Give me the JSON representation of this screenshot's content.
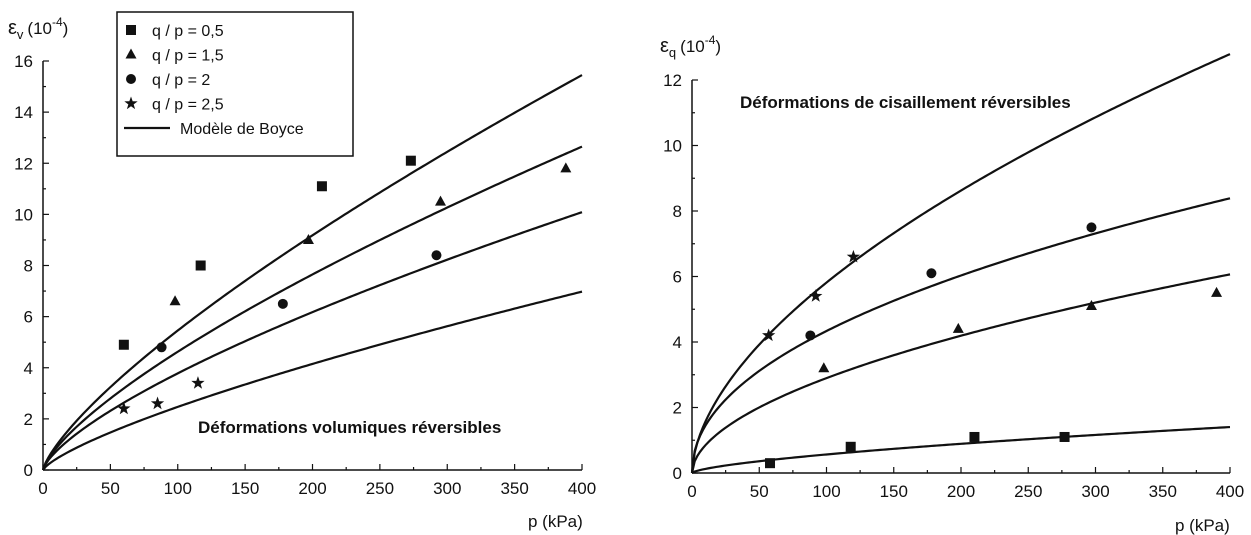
{
  "chart_data": [
    {
      "type": "scatter",
      "title": "Déformations volumiques réversibles",
      "ylabel": "εv (10-4)",
      "ylabel_symbol": "ε",
      "ylabel_sub": "v",
      "ylabel_unit": "(10",
      "ylabel_exp": "-4",
      "ylabel_close": ")",
      "xlabel": "p (kPa)",
      "xlim": [
        0,
        400
      ],
      "ylim": [
        0,
        16
      ],
      "xticks": [
        0,
        50,
        100,
        150,
        200,
        250,
        300,
        350,
        400
      ],
      "yticks": [
        0,
        2,
        4,
        6,
        8,
        10,
        12,
        14,
        16
      ],
      "grid": false,
      "legend": {
        "placement": "top-left",
        "entries": [
          {
            "label": "q / p = 0,5",
            "marker": "square"
          },
          {
            "label": "q / p = 1,5",
            "marker": "triangle"
          },
          {
            "label": "q / p = 2",
            "marker": "circle"
          },
          {
            "label": "q / p = 2,5",
            "marker": "star"
          },
          {
            "label": "Modèle de Boyce",
            "marker": "line"
          }
        ]
      },
      "series": [
        {
          "marker": "square",
          "points": [
            [
              60,
              4.9
            ],
            [
              117,
              8.0
            ],
            [
              207,
              11.1
            ],
            [
              273,
              12.1
            ]
          ]
        },
        {
          "marker": "triangle",
          "points": [
            [
              98,
              6.6
            ],
            [
              197,
              9.0
            ],
            [
              295,
              10.5
            ],
            [
              388,
              11.8
            ]
          ]
        },
        {
          "marker": "circle",
          "points": [
            [
              88,
              4.8
            ],
            [
              178,
              6.5
            ],
            [
              292,
              8.4
            ]
          ]
        },
        {
          "marker": "star",
          "points": [
            [
              60,
              2.4
            ],
            [
              85,
              2.6
            ],
            [
              115,
              3.4
            ]
          ]
        }
      ],
      "curves": [
        {
          "name": "q / p = 0,5",
          "a": 0.1718,
          "b": 0.7509
        },
        {
          "name": "q / p = 1,5",
          "a": 0.1637,
          "b": 0.7256
        },
        {
          "name": "q / p = 2",
          "a": 0.1452,
          "b": 0.7078
        },
        {
          "name": "q / p = 2,5",
          "a": 0.0782,
          "b": 0.7496
        }
      ]
    },
    {
      "type": "scatter",
      "title": "Déformations de cisaillement réversibles",
      "ylabel": "εq (10-4)",
      "ylabel_symbol": "ε",
      "ylabel_sub": "q",
      "ylabel_unit": "(10",
      "ylabel_exp": "-4",
      "ylabel_close": ")",
      "xlabel": "p (kPa)",
      "xlim": [
        0,
        400
      ],
      "ylim": [
        0,
        12
      ],
      "xticks": [
        0,
        50,
        100,
        150,
        200,
        250,
        300,
        350,
        400
      ],
      "yticks": [
        0,
        2,
        4,
        6,
        8,
        10,
        12
      ],
      "grid": false,
      "series": [
        {
          "marker": "star",
          "points": [
            [
              57,
              4.2
            ],
            [
              92,
              5.4
            ],
            [
              120,
              6.6
            ]
          ]
        },
        {
          "marker": "circle",
          "points": [
            [
              88,
              4.2
            ],
            [
              178,
              6.1
            ],
            [
              297,
              7.5
            ]
          ]
        },
        {
          "marker": "triangle",
          "points": [
            [
              98,
              3.2
            ],
            [
              198,
              4.4
            ],
            [
              297,
              5.1
            ],
            [
              390,
              5.5
            ]
          ]
        },
        {
          "marker": "square",
          "points": [
            [
              58,
              0.3
            ],
            [
              118,
              0.8
            ],
            [
              210,
              1.1
            ],
            [
              277,
              1.1
            ]
          ]
        }
      ],
      "curves": [
        {
          "name": "q / p = 2,5",
          "a": 0.424,
          "b": 0.5686
        },
        {
          "name": "q / p = 2",
          "a": 0.484,
          "b": 0.4761
        },
        {
          "name": "q / p = 1,5",
          "a": 0.249,
          "b": 0.5329
        },
        {
          "name": "q / p = 0,5",
          "a": 0.0277,
          "b": 0.6551
        }
      ]
    }
  ]
}
